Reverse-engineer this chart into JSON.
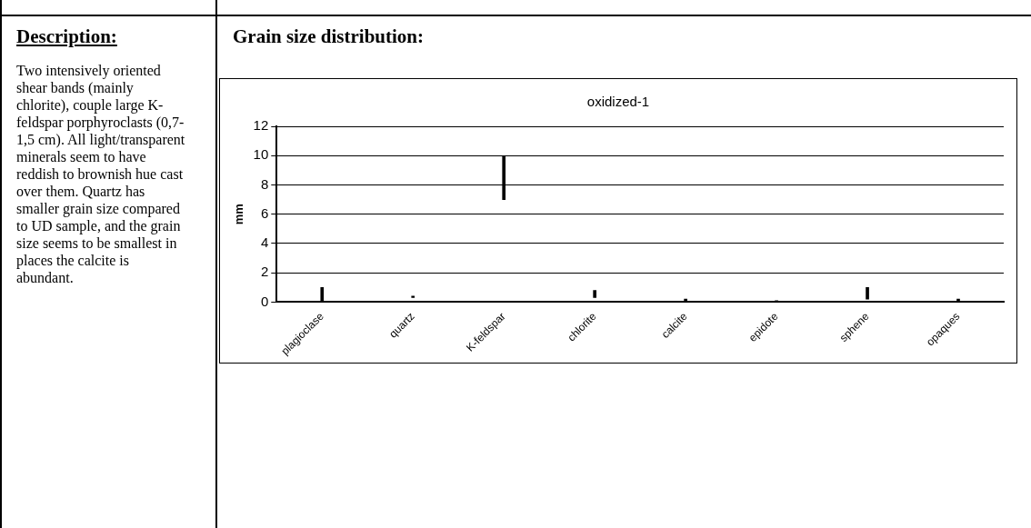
{
  "chart_data": {
    "type": "bar",
    "title": "oxidized-1",
    "ylabel": "mm",
    "annotations": [
      "Description:",
      "Two intensively oriented shear bands (mainly chlorite), couple large K-feldspar porphyroclasts (0,7-1,5 cm). All light/transparent minerals seem to have reddish to brownish hue cast over them. Quartz has smaller grain size compared to UD sample, and the grain size seems to be smallest in places the calcite is abundant.",
      "Grain size distribution:"
    ],
    "categories": [
      "plagioclase",
      "quartz",
      "K-feldspar",
      "chlorite",
      "calcite",
      "epidote",
      "sphene",
      "opaques"
    ],
    "series": [
      {
        "color": "#000000",
        "base": [
          0,
          0.3,
          7,
          0.3,
          0.1,
          0,
          0.2,
          0.1
        ],
        "values": [
          1,
          0.1,
          3,
          0.5,
          0.1,
          0.1,
          0.8,
          0.1
        ]
      }
    ],
    "ylim": [
      0,
      12
    ],
    "yticks": [
      0,
      2,
      4,
      6,
      8,
      10,
      12
    ],
    "grid": "y",
    "legend": false
  }
}
